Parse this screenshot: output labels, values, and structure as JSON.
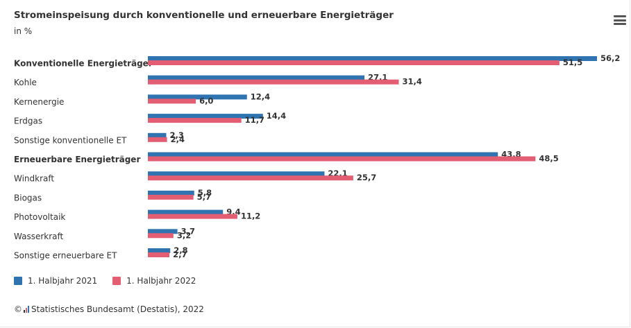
{
  "header": {
    "title": "Stromeinspeisung durch konventionelle und erneuerbare Energieträger",
    "subtitle": "in %"
  },
  "menu": {
    "icon": "hamburger-menu-icon"
  },
  "colors": {
    "series_2021": "#2f73b0",
    "series_2022": "#e35d73",
    "text": "#333333"
  },
  "chart_data": {
    "type": "bar",
    "orientation": "horizontal",
    "title": "Stromeinspeisung durch konventionelle und erneuerbare Energieträger",
    "subtitle": "in %",
    "categories": [
      "Konventionelle Energieträger",
      "Kohle",
      "Kernenergie",
      "Erdgas",
      "Sonstige konventionelle ET",
      "Erneuerbare Energieträger",
      "Windkraft",
      "Biogas",
      "Photovoltaik",
      "Wasserkraft",
      "Sonstige erneuerbare ET"
    ],
    "bold_categories": [
      0,
      5
    ],
    "series": [
      {
        "name": "1. Halbjahr 2021",
        "values": [
          56.2,
          27.1,
          12.4,
          14.4,
          2.3,
          43.8,
          22.1,
          5.8,
          9.4,
          3.7,
          2.8
        ]
      },
      {
        "name": "1. Halbjahr 2022",
        "values": [
          51.5,
          31.4,
          6.0,
          11.7,
          2.4,
          48.5,
          25.7,
          5.7,
          11.2,
          3.2,
          2.7
        ]
      }
    ],
    "value_labels": [
      [
        "56,2",
        "27,1",
        "12,4",
        "14,4",
        "2,3",
        "43,8",
        "22,1",
        "5,8",
        "9,4",
        "3,7",
        "2,8"
      ],
      [
        "51,5",
        "31,4",
        "6,0",
        "11,7",
        "2,4",
        "48,5",
        "25,7",
        "5,7",
        "11,2",
        "3,2",
        "2,7"
      ]
    ],
    "xlim": [
      0,
      56.2
    ],
    "grid": false,
    "legend_position": "bottom-left"
  },
  "legend": {
    "items": [
      {
        "label": "1. Halbjahr 2021"
      },
      {
        "label": "1. Halbjahr 2022"
      }
    ]
  },
  "credits": {
    "copyright_symbol": "©",
    "text": "Statistisches Bundesamt (Destatis), 2022"
  }
}
